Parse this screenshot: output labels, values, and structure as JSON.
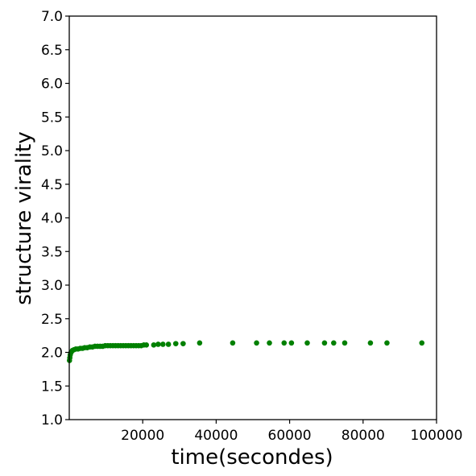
{
  "chart_data": {
    "type": "scatter",
    "xlabel": "time(secondes)",
    "ylabel": "structure virality",
    "xlim": [
      0,
      100000
    ],
    "ylim": [
      1.0,
      7.0
    ],
    "xticks": [
      "20000",
      "40000",
      "60000",
      "80000",
      "100000"
    ],
    "yticks": [
      "1.0",
      "1.5",
      "2.0",
      "2.5",
      "3.0",
      "3.5",
      "4.0",
      "4.5",
      "5.0",
      "5.5",
      "6.0",
      "6.5",
      "7.0"
    ],
    "grid": false,
    "marker_color": "#008000",
    "series": [
      {
        "x": [
          60,
          150,
          250,
          400,
          600,
          900,
          1300,
          1800,
          2400,
          3000,
          3600,
          4200,
          4900,
          5600,
          6300,
          7000,
          7700,
          8400,
          9100,
          9800,
          10500,
          11200,
          11900,
          12600,
          13300,
          14000,
          14700,
          15400,
          16100,
          16800,
          17500,
          18200,
          18900,
          19600,
          20300,
          21000,
          23000,
          24200,
          25500,
          27000,
          29000,
          31000,
          35500,
          44500,
          51000,
          54500,
          58500,
          60500,
          64800,
          69500,
          72000,
          75000,
          82000,
          86500,
          96000
        ],
        "y": [
          1.88,
          1.92,
          1.96,
          1.99,
          2.01,
          2.03,
          2.04,
          2.05,
          2.05,
          2.06,
          2.06,
          2.07,
          2.07,
          2.08,
          2.08,
          2.09,
          2.09,
          2.09,
          2.09,
          2.1,
          2.1,
          2.1,
          2.1,
          2.1,
          2.1,
          2.1,
          2.1,
          2.1,
          2.1,
          2.1,
          2.1,
          2.1,
          2.1,
          2.1,
          2.11,
          2.11,
          2.11,
          2.12,
          2.12,
          2.12,
          2.13,
          2.13,
          2.14,
          2.14,
          2.14,
          2.14,
          2.14,
          2.14,
          2.14,
          2.14,
          2.14,
          2.14,
          2.14,
          2.14,
          2.14
        ]
      }
    ]
  }
}
